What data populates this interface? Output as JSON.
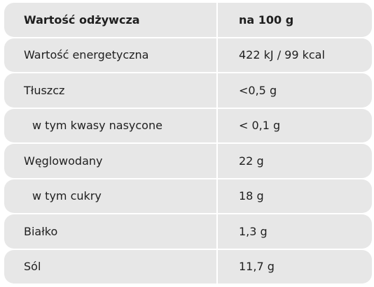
{
  "table": {
    "header": {
      "label": "Wartość odżywcza",
      "value": "na 100 g"
    },
    "rows": [
      {
        "label": "Wartość energetyczna",
        "value": "422 kJ / 99 kcal"
      },
      {
        "label": "Tłuszcz",
        "value": "<0,5 g"
      },
      {
        "label": "w tym kwasy nasycone",
        "value": "< 0,1 g"
      },
      {
        "label": "Węglowodany",
        "value": "22 g"
      },
      {
        "label": "w tym cukry",
        "value": "18 g"
      },
      {
        "label": "Białko",
        "value": "1,3 g"
      },
      {
        "label": "Sól",
        "value": "11,7 g"
      }
    ]
  },
  "colors": {
    "row_background": "#e7e7e7",
    "text": "#1f1f1f"
  }
}
